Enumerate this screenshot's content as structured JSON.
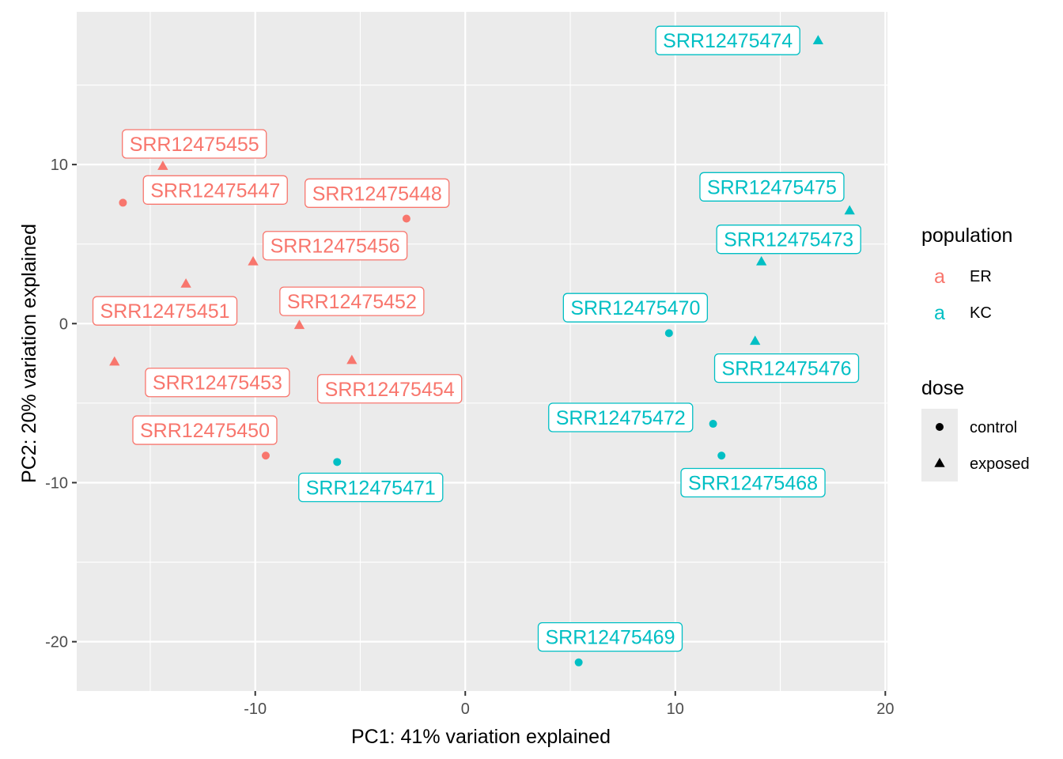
{
  "chart_data": {
    "type": "scatter",
    "xlabel": "PC1: 41% variation explained",
    "ylabel": "PC2: 20% variation explained",
    "xlim": [
      -18.5,
      20.1
    ],
    "ylim": [
      -23.1,
      19.6
    ],
    "x_ticks": [
      -10,
      0,
      10,
      20
    ],
    "y_ticks": [
      -20,
      -10,
      0,
      10
    ],
    "x_tick_labels": [
      "-10",
      "0",
      "10",
      "20"
    ],
    "y_tick_labels": [
      "-20",
      "-10",
      "0",
      "10"
    ],
    "grid": true,
    "legend_position": "right",
    "legends": {
      "population": {
        "title": "population",
        "key_glyph": "a",
        "items": [
          {
            "label": "ER",
            "color": "#F8766D"
          },
          {
            "label": "KC",
            "color": "#00BFC4"
          }
        ]
      },
      "dose": {
        "title": "dose",
        "items": [
          {
            "label": "control",
            "shape": "circle"
          },
          {
            "label": "exposed",
            "shape": "triangle"
          }
        ]
      }
    },
    "points": [
      {
        "id": "SRR12475455",
        "x": -14.4,
        "y": 9.9,
        "population": "ER",
        "dose": "exposed",
        "label_dx": 1.5,
        "label_dy": 1.4
      },
      {
        "id": "SRR12475447",
        "x": -16.3,
        "y": 7.6,
        "population": "ER",
        "dose": "control",
        "label_dx": 4.4,
        "label_dy": 0.8
      },
      {
        "id": "SRR12475448",
        "x": -2.8,
        "y": 6.6,
        "population": "ER",
        "dose": "control",
        "label_dx": -1.4,
        "label_dy": 1.6
      },
      {
        "id": "SRR12475456",
        "x": -10.1,
        "y": 3.9,
        "population": "ER",
        "dose": "exposed",
        "label_dx": 3.9,
        "label_dy": 1.0
      },
      {
        "id": "SRR12475451",
        "x": -13.3,
        "y": 2.5,
        "population": "ER",
        "dose": "exposed",
        "label_dx": -1.0,
        "label_dy": -1.7
      },
      {
        "id": "SRR12475452",
        "x": -7.9,
        "y": -0.1,
        "population": "ER",
        "dose": "exposed",
        "label_dx": 2.5,
        "label_dy": 1.5
      },
      {
        "id": "SRR12475453",
        "x": -16.7,
        "y": -2.4,
        "population": "ER",
        "dose": "exposed",
        "label_dx": 4.9,
        "label_dy": -1.3
      },
      {
        "id": "SRR12475454",
        "x": -5.4,
        "y": -2.3,
        "population": "ER",
        "dose": "exposed",
        "label_dx": 1.8,
        "label_dy": -1.8
      },
      {
        "id": "SRR12475450",
        "x": -9.5,
        "y": -8.3,
        "population": "ER",
        "dose": "control",
        "label_dx": -2.9,
        "label_dy": 1.6
      },
      {
        "id": "SRR12475471",
        "x": -6.1,
        "y": -8.7,
        "population": "KC",
        "dose": "control",
        "label_dx": 1.6,
        "label_dy": -1.6
      },
      {
        "id": "SRR12475474",
        "x": 16.8,
        "y": 17.8,
        "population": "KC",
        "dose": "exposed",
        "label_dx": -4.3,
        "label_dy": 0.0
      },
      {
        "id": "SRR12475475",
        "x": 18.3,
        "y": 7.1,
        "population": "KC",
        "dose": "exposed",
        "label_dx": -3.7,
        "label_dy": 1.5
      },
      {
        "id": "SRR12475473",
        "x": 14.1,
        "y": 3.9,
        "population": "KC",
        "dose": "exposed",
        "label_dx": 1.3,
        "label_dy": 1.4
      },
      {
        "id": "SRR12475470",
        "x": 9.7,
        "y": -0.6,
        "population": "KC",
        "dose": "control",
        "label_dx": -1.6,
        "label_dy": 1.6
      },
      {
        "id": "SRR12475476",
        "x": 13.8,
        "y": -1.1,
        "population": "KC",
        "dose": "exposed",
        "label_dx": 1.5,
        "label_dy": -1.7
      },
      {
        "id": "SRR12475472",
        "x": 11.8,
        "y": -6.3,
        "population": "KC",
        "dose": "control",
        "label_dx": -4.4,
        "label_dy": 0.4
      },
      {
        "id": "SRR12475468",
        "x": 12.2,
        "y": -8.3,
        "population": "KC",
        "dose": "control",
        "label_dx": 1.5,
        "label_dy": -1.7
      },
      {
        "id": "SRR12475469",
        "x": 5.4,
        "y": -21.3,
        "population": "KC",
        "dose": "control",
        "label_dx": 1.5,
        "label_dy": 1.6
      }
    ]
  }
}
